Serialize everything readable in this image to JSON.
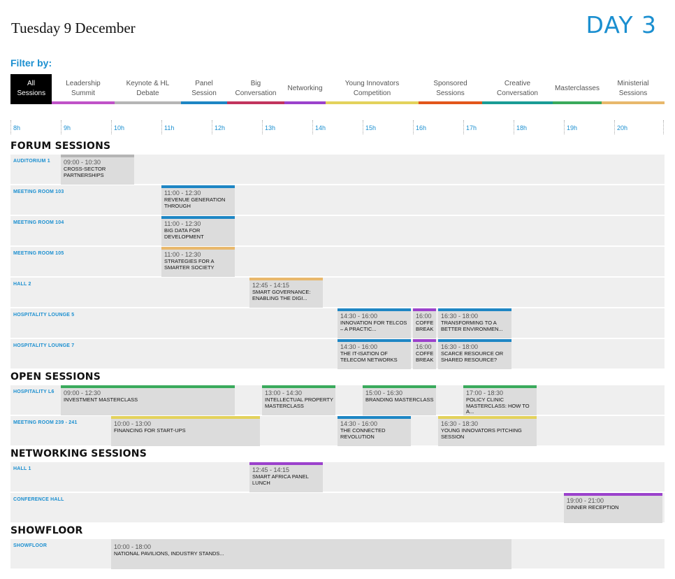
{
  "header": {
    "date": "Tuesday 9 December",
    "day": "DAY 3"
  },
  "filter_label": "Filter by:",
  "filters": [
    {
      "label": "All Sessions",
      "color": "#000000",
      "active": true
    },
    {
      "label": "Leadership Summit",
      "color": "#c052c8"
    },
    {
      "label": "Keynote & HL Debate",
      "color": "#b5b5b5"
    },
    {
      "label": "Panel Session",
      "color": "#1e86c4"
    },
    {
      "label": "Big Conversation",
      "color": "#c2345e"
    },
    {
      "label": "Networking",
      "color": "#9b42cc"
    },
    {
      "label": "Young Innovators Competition",
      "color": "#e3d25c"
    },
    {
      "label": "Sponsored Sessions",
      "color": "#e2561b"
    },
    {
      "label": "Creative Conversation",
      "color": "#1a9c95"
    },
    {
      "label": "Masterclasses",
      "color": "#3aaa5c"
    },
    {
      "label": "Ministerial Sessions",
      "color": "#e8b86c"
    }
  ],
  "timeline": [
    "8h",
    "9h",
    "10h",
    "11h",
    "12h",
    "13h",
    "14h",
    "15h",
    "16h",
    "17h",
    "18h",
    "19h",
    "20h"
  ],
  "sections": [
    {
      "title": "FORUM SESSIONS",
      "rows": [
        {
          "room": "AUDITORIUM 1",
          "sessions": [
            {
              "time": "09:00 - 10:30",
              "title": "CROSS-SECTOR PARTNERSHIPS",
              "start": 9.0,
              "end": 10.5,
              "color": "#b5b5b5"
            }
          ]
        },
        {
          "room": "MEETING ROOM 103",
          "sessions": [
            {
              "time": "11:00 - 12:30",
              "title": "REVENUE GENERATION THROUGH",
              "start": 11.0,
              "end": 12.5,
              "color": "#1e86c4"
            }
          ]
        },
        {
          "room": "MEETING ROOM 104",
          "sessions": [
            {
              "time": "11:00 - 12:30",
              "title": "BIG DATA FOR DEVELOPMENT",
              "start": 11.0,
              "end": 12.5,
              "color": "#1e86c4"
            }
          ]
        },
        {
          "room": "MEETING ROOM 105",
          "sessions": [
            {
              "time": "11:00 - 12:30",
              "title": "STRATEGIES FOR A SMARTER SOCIETY",
              "start": 11.0,
              "end": 12.5,
              "color": "#e8b86c"
            }
          ]
        },
        {
          "room": "HALL 2",
          "sessions": [
            {
              "time": "12:45 - 14:15",
              "title": "SMART GOVERNANCE: ENABLING THE DIGI...",
              "start": 12.75,
              "end": 14.25,
              "color": "#e8b86c"
            }
          ]
        },
        {
          "room": "HOSPITALITY LOUNGE 5",
          "sessions": [
            {
              "time": "14:30 - 16:00",
              "title": "INNOVATION FOR TELCOS – A PRACTIC...",
              "start": 14.5,
              "end": 16.0,
              "color": "#1e86c4"
            },
            {
              "time": "16:00",
              "title": "COFFEE BREAK",
              "start": 16.0,
              "end": 16.5,
              "color": "#9b42cc"
            },
            {
              "time": "16:30 - 18:00",
              "title": "TRANSFORMING TO A BETTER ENVIRONMEN...",
              "start": 16.5,
              "end": 18.0,
              "color": "#1e86c4"
            }
          ]
        },
        {
          "room": "HOSPITALITY LOUNGE 7",
          "sessions": [
            {
              "time": "14:30 - 16:00",
              "title": "THE IT-ISATION OF TELECOM NETWORKS",
              "start": 14.5,
              "end": 16.0,
              "color": "#1e86c4"
            },
            {
              "time": "16:00",
              "title": "COFFEE BREAK",
              "start": 16.0,
              "end": 16.5,
              "color": "#9b42cc"
            },
            {
              "time": "16:30 - 18:00",
              "title": "SCARCE RESOURCE OR SHARED RESOURCE?",
              "start": 16.5,
              "end": 18.0,
              "color": "#1e86c4"
            }
          ]
        }
      ]
    },
    {
      "title": "OPEN SESSIONS",
      "rows": [
        {
          "room": "HOSPITALITY L6",
          "sessions": [
            {
              "time": "09:00 - 12:30",
              "title": "INVESTMENT MASTERCLASS",
              "start": 9.0,
              "end": 12.5,
              "color": "#3aaa5c"
            },
            {
              "time": "13:00 - 14:30",
              "title": "INTELLECTUAL PROPERTY MASTERCLASS",
              "start": 13.0,
              "end": 14.5,
              "color": "#3aaa5c"
            },
            {
              "time": "15:00 - 16:30",
              "title": "BRANDING MASTERCLASS",
              "start": 15.0,
              "end": 16.5,
              "color": "#3aaa5c"
            },
            {
              "time": "17:00 - 18:30",
              "title": "POLICY CLINIC MASTERCLASS: HOW TO A...",
              "start": 17.0,
              "end": 18.5,
              "color": "#3aaa5c"
            }
          ]
        },
        {
          "room": "MEETING ROOM 239 - 241",
          "sessions": [
            {
              "time": "10:00 - 13:00",
              "title": "FINANCING FOR START-UPS",
              "start": 10.0,
              "end": 13.0,
              "color": "#e3d25c"
            },
            {
              "time": "14:30 - 16:00",
              "title": "THE CONNECTED REVOLUTION",
              "start": 14.5,
              "end": 16.0,
              "color": "#1e86c4"
            },
            {
              "time": "16:30 - 18:30",
              "title": "YOUNG INNOVATORS PITCHING SESSION",
              "start": 16.5,
              "end": 18.5,
              "color": "#e3d25c"
            }
          ]
        }
      ]
    },
    {
      "title": "NETWORKING SESSIONS",
      "rows": [
        {
          "room": "HALL 1",
          "sessions": [
            {
              "time": "12:45 - 14:15",
              "title": "SMART AFRICA PANEL LUNCH",
              "start": 12.75,
              "end": 14.25,
              "color": "#9b42cc"
            }
          ]
        },
        {
          "room": "CONFERENCE HALL",
          "sessions": [
            {
              "time": "19:00 - 21:00",
              "title": "DINNER RECEPTION",
              "start": 19.0,
              "end": 21.0,
              "color": "#9b42cc"
            }
          ]
        }
      ]
    },
    {
      "title": "SHOWFLOOR",
      "rows": [
        {
          "room": "SHOWFLOOR",
          "sessions": [
            {
              "time": "10:00 - 18:00",
              "title": "NATIONAL PAVILIONS, INDUSTRY STANDS...",
              "start": 10.0,
              "end": 18.0,
              "color": ""
            }
          ]
        }
      ]
    }
  ]
}
